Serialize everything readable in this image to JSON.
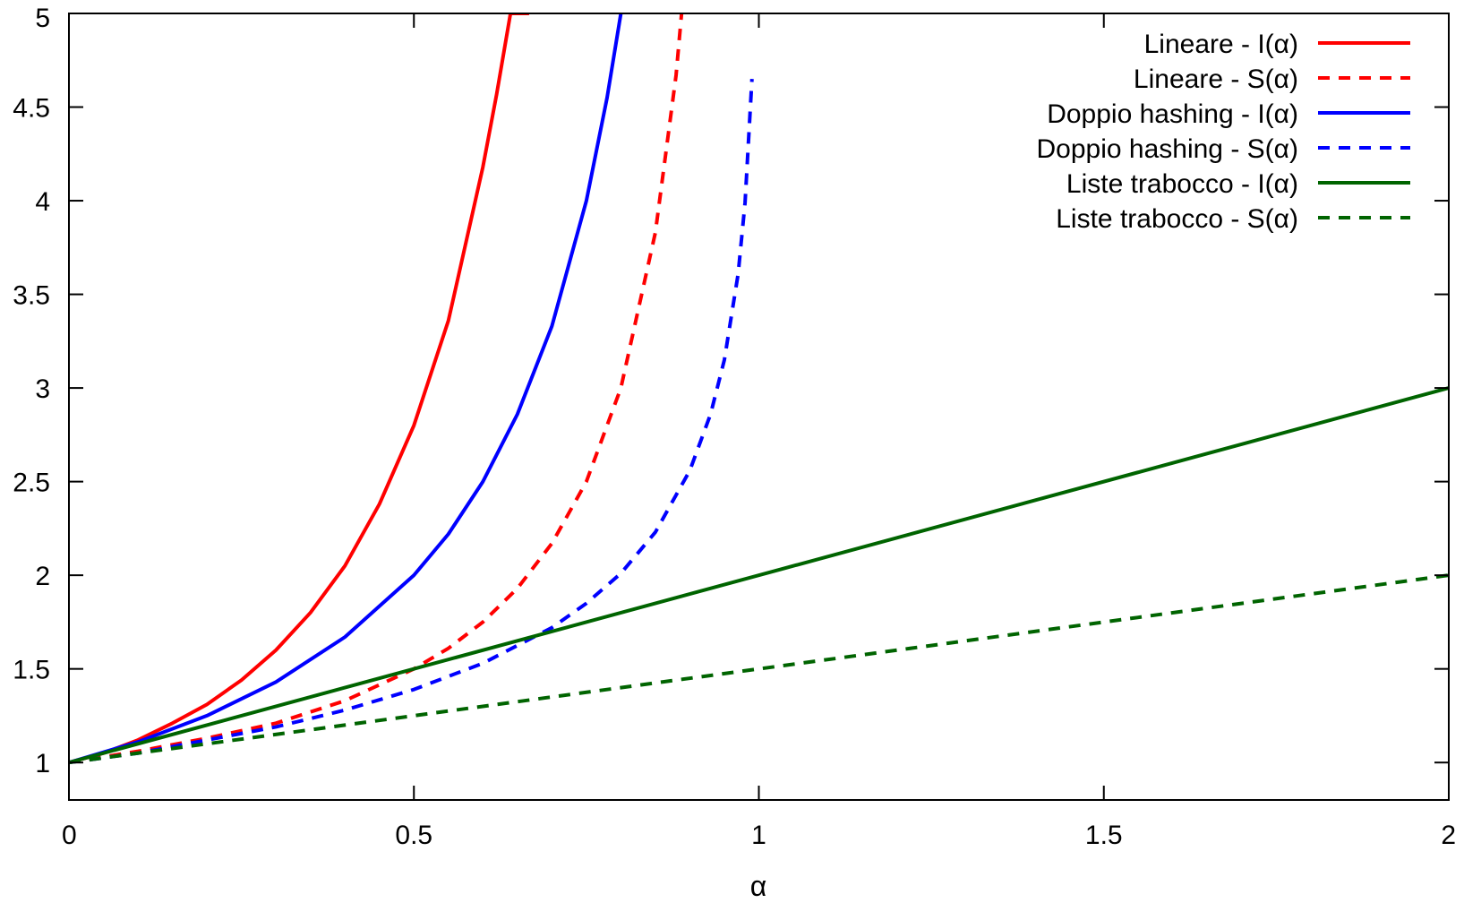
{
  "chart_data": {
    "type": "line",
    "title": "",
    "xlabel": "α",
    "ylabel": "",
    "xlim": [
      0,
      2
    ],
    "ylim": [
      0.8,
      5
    ],
    "grid": false,
    "legend_position": "top-right",
    "x_ticks": [
      {
        "value": 0,
        "label": "0"
      },
      {
        "value": 0.5,
        "label": "0.5"
      },
      {
        "value": 1,
        "label": "1"
      },
      {
        "value": 1.5,
        "label": "1.5"
      },
      {
        "value": 2,
        "label": "2"
      }
    ],
    "y_ticks": [
      {
        "value": 1,
        "label": "1"
      },
      {
        "value": 1.5,
        "label": "1.5"
      },
      {
        "value": 2,
        "label": "2"
      },
      {
        "value": 2.5,
        "label": "2.5"
      },
      {
        "value": 3,
        "label": "3"
      },
      {
        "value": 3.5,
        "label": "3.5"
      },
      {
        "value": 4,
        "label": "4"
      },
      {
        "value": 4.5,
        "label": "4.5"
      },
      {
        "value": 5,
        "label": "5"
      }
    ],
    "series": [
      {
        "name": "Lineare - I(α)",
        "color": "#ff0000",
        "dash": false,
        "x": [
          0,
          0.05,
          0.1,
          0.15,
          0.2,
          0.25,
          0.3,
          0.35,
          0.4,
          0.45,
          0.5,
          0.55,
          0.6,
          0.62,
          0.64,
          0.66,
          0.667
        ],
        "y": [
          1.0,
          1.05,
          1.12,
          1.21,
          1.31,
          1.44,
          1.6,
          1.8,
          2.05,
          2.38,
          2.8,
          3.36,
          4.18,
          4.57,
          5.0,
          5.0,
          5.0
        ]
      },
      {
        "name": "Lineare - S(α)",
        "color": "#ff0000",
        "dash": true,
        "x": [
          0,
          0.1,
          0.2,
          0.3,
          0.4,
          0.5,
          0.55,
          0.6,
          0.65,
          0.7,
          0.75,
          0.8,
          0.85,
          0.88,
          0.888
        ],
        "y": [
          1.0,
          1.06,
          1.13,
          1.21,
          1.33,
          1.5,
          1.61,
          1.75,
          1.93,
          2.17,
          2.5,
          3.0,
          3.83,
          4.67,
          5.0
        ]
      },
      {
        "name": "Doppio hashing - I(α)",
        "color": "#0000ff",
        "dash": false,
        "x": [
          0,
          0.1,
          0.2,
          0.3,
          0.4,
          0.5,
          0.55,
          0.6,
          0.65,
          0.7,
          0.75,
          0.78,
          0.8
        ],
        "y": [
          1.0,
          1.11,
          1.25,
          1.43,
          1.67,
          2.0,
          2.22,
          2.5,
          2.86,
          3.33,
          4.0,
          4.55,
          5.0
        ]
      },
      {
        "name": "Doppio hashing - S(α)",
        "color": "#0000ff",
        "dash": true,
        "x": [
          0,
          0.1,
          0.2,
          0.3,
          0.4,
          0.5,
          0.6,
          0.7,
          0.75,
          0.8,
          0.85,
          0.9,
          0.93,
          0.95,
          0.97,
          0.98,
          0.99
        ],
        "y": [
          1.0,
          1.05,
          1.12,
          1.19,
          1.28,
          1.39,
          1.53,
          1.72,
          1.85,
          2.01,
          2.23,
          2.56,
          2.86,
          3.15,
          3.61,
          3.99,
          4.65
        ]
      },
      {
        "name": "Liste trabocco - I(α)",
        "color": "#006400",
        "dash": false,
        "x": [
          0,
          2
        ],
        "y": [
          1.0,
          3.0
        ]
      },
      {
        "name": "Liste trabocco - S(α)",
        "color": "#006400",
        "dash": true,
        "x": [
          0,
          2
        ],
        "y": [
          1.0,
          2.0
        ]
      }
    ]
  }
}
